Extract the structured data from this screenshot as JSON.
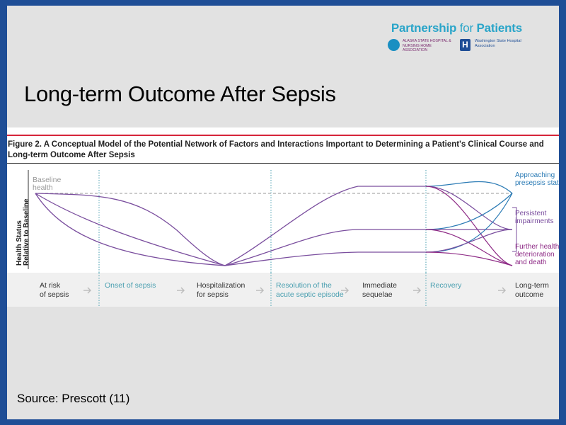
{
  "logo": {
    "title_prefix": "Partnership ",
    "title_for": "for",
    "title_suffix": " Patients",
    "alaska": "Alaska State Hospital & Nursing Home Association",
    "washington": "Washington State Hospital Association"
  },
  "slide_title": "Long-term Outcome After Sepsis",
  "figure": {
    "caption": "Figure 2. A Conceptual Model of the Potential Network of Factors and Interactions Important to Determining a Patient's Clinical Course and Long-term Outcome After Sepsis",
    "y_axis": [
      "Health Status",
      "Relative to Baseline"
    ],
    "baseline": [
      "Baseline",
      "health"
    ],
    "stages": [
      {
        "lines": [
          "At risk",
          "of sepsis"
        ],
        "highlight": false
      },
      {
        "lines": [
          "Onset of sepsis"
        ],
        "highlight": true
      },
      {
        "lines": [
          "Hospitalization",
          "for sepsis"
        ],
        "highlight": false
      },
      {
        "lines": [
          "Resolution of the",
          "acute septic episode"
        ],
        "highlight": true
      },
      {
        "lines": [
          "Immediate",
          "sequelae"
        ],
        "highlight": false
      },
      {
        "lines": [
          "Recovery"
        ],
        "highlight": true
      },
      {
        "lines": [
          "Long-term",
          "outcome"
        ],
        "highlight": false
      }
    ],
    "outcomes": [
      {
        "lines": [
          "Approaching",
          "presepsis status"
        ],
        "color": "#2b7bb5"
      },
      {
        "lines": [
          "Persistent",
          "impairments"
        ],
        "color": "#7a4e9e"
      },
      {
        "lines": [
          "Further health",
          "deterioration",
          "and death"
        ],
        "color": "#8e2b86"
      }
    ],
    "colors": {
      "teal": "#4a9fb0",
      "purple": "#7a4e9e",
      "blue": "#2b7bb5",
      "magenta": "#8e2b86",
      "gray": "#9a9a9a"
    }
  },
  "source": "Source: Prescott (11)"
}
